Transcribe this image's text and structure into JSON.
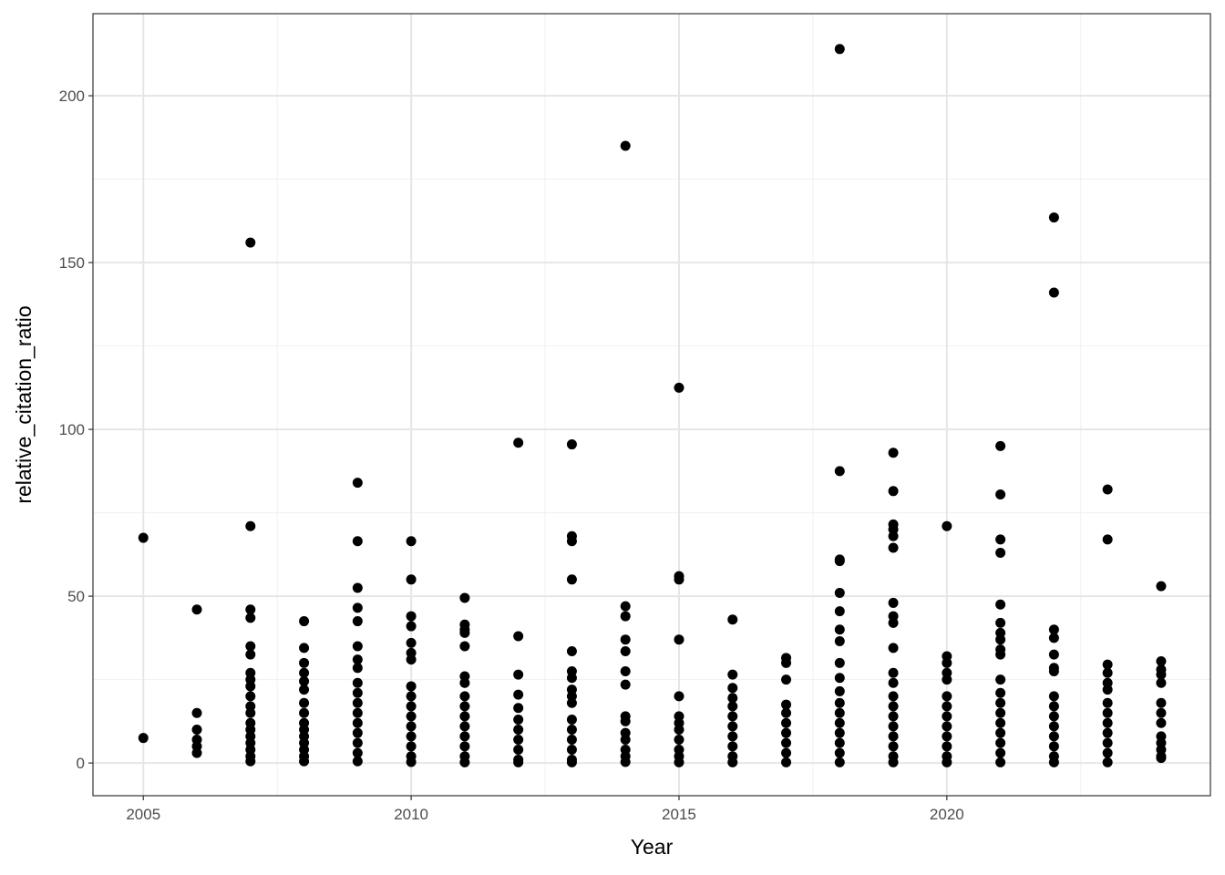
{
  "chart_data": {
    "type": "scatter",
    "x_label": "Year",
    "y_label": "relative_citation_ratio",
    "xlim": [
      2004.06,
      2024.92
    ],
    "ylim": [
      -9.8,
      224.6
    ],
    "xticks": [
      2005,
      2010,
      2015,
      2020
    ],
    "yticks": [
      0,
      50,
      100,
      150,
      200
    ],
    "x_minor": [
      2007.5,
      2012.5,
      2017.5,
      2022.5
    ],
    "y_minor": [
      25,
      75,
      125,
      175
    ],
    "grid": true,
    "color": "#000000",
    "x": [
      2005,
      2005,
      2006,
      2006,
      2006,
      2006,
      2006,
      2006,
      2007,
      2007,
      2007,
      2007,
      2007,
      2007,
      2007,
      2007,
      2007,
      2007,
      2007,
      2007,
      2007,
      2007,
      2007,
      2007,
      2007,
      2007,
      2007,
      2008,
      2008,
      2008,
      2008,
      2008,
      2008,
      2008,
      2008,
      2008,
      2008,
      2008,
      2008,
      2008,
      2008,
      2008,
      2009,
      2009,
      2009,
      2009,
      2009,
      2009,
      2009,
      2009,
      2009,
      2009,
      2009,
      2009,
      2009,
      2009,
      2009,
      2009,
      2009,
      2010,
      2010,
      2010,
      2010,
      2010,
      2010,
      2010,
      2010,
      2010,
      2010,
      2010,
      2010,
      2010,
      2010,
      2010,
      2010,
      2011,
      2011,
      2011,
      2011,
      2011,
      2011,
      2011,
      2011,
      2011,
      2011,
      2011,
      2011,
      2011,
      2011,
      2011,
      2012,
      2012,
      2012,
      2012,
      2012,
      2012,
      2012,
      2012,
      2012,
      2012,
      2012,
      2013,
      2013,
      2013,
      2013,
      2013,
      2013,
      2013,
      2013,
      2013,
      2013,
      2013,
      2013,
      2013,
      2013,
      2013,
      2013,
      2014,
      2014,
      2014,
      2014,
      2014,
      2014,
      2014,
      2014,
      2014,
      2014,
      2014,
      2014,
      2014,
      2014,
      2015,
      2015,
      2015,
      2015,
      2015,
      2015,
      2015,
      2015,
      2015,
      2015,
      2015,
      2015,
      2016,
      2016,
      2016,
      2016,
      2016,
      2016,
      2016,
      2016,
      2016,
      2016,
      2016,
      2017,
      2017,
      2017,
      2017,
      2017,
      2017,
      2017,
      2017,
      2017,
      2017,
      2018,
      2018,
      2018,
      2018,
      2018,
      2018,
      2018,
      2018,
      2018,
      2018,
      2018,
      2018,
      2018,
      2018,
      2018,
      2018,
      2018,
      2018,
      2019,
      2019,
      2019,
      2019,
      2019,
      2019,
      2019,
      2019,
      2019,
      2019,
      2019,
      2019,
      2019,
      2019,
      2019,
      2019,
      2019,
      2019,
      2019,
      2019,
      2020,
      2020,
      2020,
      2020,
      2020,
      2020,
      2020,
      2020,
      2020,
      2020,
      2020,
      2020,
      2020,
      2021,
      2021,
      2021,
      2021,
      2021,
      2021,
      2021,
      2021,
      2021,
      2021,
      2021,
      2021,
      2021,
      2021,
      2021,
      2021,
      2021,
      2021,
      2021,
      2022,
      2022,
      2022,
      2022,
      2022,
      2022,
      2022,
      2022,
      2022,
      2022,
      2022,
      2022,
      2022,
      2022,
      2022,
      2023,
      2023,
      2023,
      2023,
      2023,
      2023,
      2023,
      2023,
      2023,
      2023,
      2023,
      2023,
      2023,
      2024,
      2024,
      2024,
      2024,
      2024,
      2024,
      2024,
      2024,
      2024,
      2024,
      2024,
      2024,
      2024
    ],
    "values": [
      67.5,
      7.5,
      46,
      15,
      10,
      7,
      5,
      3,
      156,
      71,
      46,
      43.5,
      35,
      32.5,
      27,
      25,
      23,
      20,
      17,
      15,
      12,
      10,
      8,
      6,
      4,
      2,
      0.5,
      42.5,
      34.5,
      30,
      27,
      24.5,
      22,
      18,
      15,
      12,
      10,
      8,
      6,
      4,
      2,
      0.5,
      84,
      66.5,
      52.5,
      46.5,
      42.5,
      35,
      31,
      28.5,
      24,
      21,
      18,
      15,
      12,
      9,
      6,
      3,
      0.5,
      66.5,
      55,
      44,
      41,
      36,
      33,
      31,
      23,
      20,
      17,
      14,
      11,
      8,
      5,
      2,
      0.3,
      49.5,
      41.5,
      40,
      39,
      35,
      26,
      24,
      20,
      17,
      14,
      11,
      8,
      5,
      2,
      0.2,
      96,
      38,
      26.5,
      20.5,
      16.5,
      13,
      10,
      7,
      4,
      1,
      0.2,
      95.5,
      68,
      66.5,
      55,
      33.5,
      27.5,
      25.5,
      22,
      20,
      18,
      13,
      10,
      7,
      4,
      1,
      0.2,
      185,
      47,
      44,
      37,
      33.5,
      27.5,
      23.5,
      14,
      12.5,
      9,
      7,
      4,
      2,
      0.3,
      112.5,
      56,
      55,
      37,
      20,
      14,
      12,
      10,
      7,
      4,
      2,
      0.2,
      43,
      26.5,
      22.5,
      19.5,
      17,
      14,
      11,
      8,
      5,
      2,
      0.2,
      31.5,
      30,
      25,
      17.5,
      15,
      12,
      9,
      6,
      3,
      0.2,
      214,
      87.5,
      61,
      60.5,
      51,
      45.5,
      40,
      36.5,
      30,
      25.5,
      21.5,
      18,
      15,
      12,
      9,
      6,
      3,
      0.2,
      93,
      81.5,
      71.5,
      70,
      68,
      64.5,
      48,
      44,
      42,
      34.5,
      27,
      24,
      20,
      17,
      14,
      11,
      8,
      5,
      2,
      0.2,
      71,
      32,
      30,
      27,
      25,
      20,
      17,
      14,
      11,
      8,
      5,
      2,
      0.2,
      95,
      80.5,
      67,
      63,
      47.5,
      42,
      39,
      37,
      34,
      32.5,
      25,
      21,
      18,
      15,
      12,
      9,
      6,
      3,
      0.2,
      163.5,
      141,
      40,
      37.5,
      32.5,
      28.5,
      27.5,
      20,
      17,
      14,
      11,
      8,
      5,
      2,
      0.2,
      82,
      67,
      29.5,
      27,
      24,
      22,
      18,
      15,
      12,
      9,
      6,
      3,
      0.2,
      53,
      30.5,
      28,
      26.5,
      24,
      18,
      15,
      12,
      8,
      6,
      4,
      2,
      1.5
    ]
  }
}
